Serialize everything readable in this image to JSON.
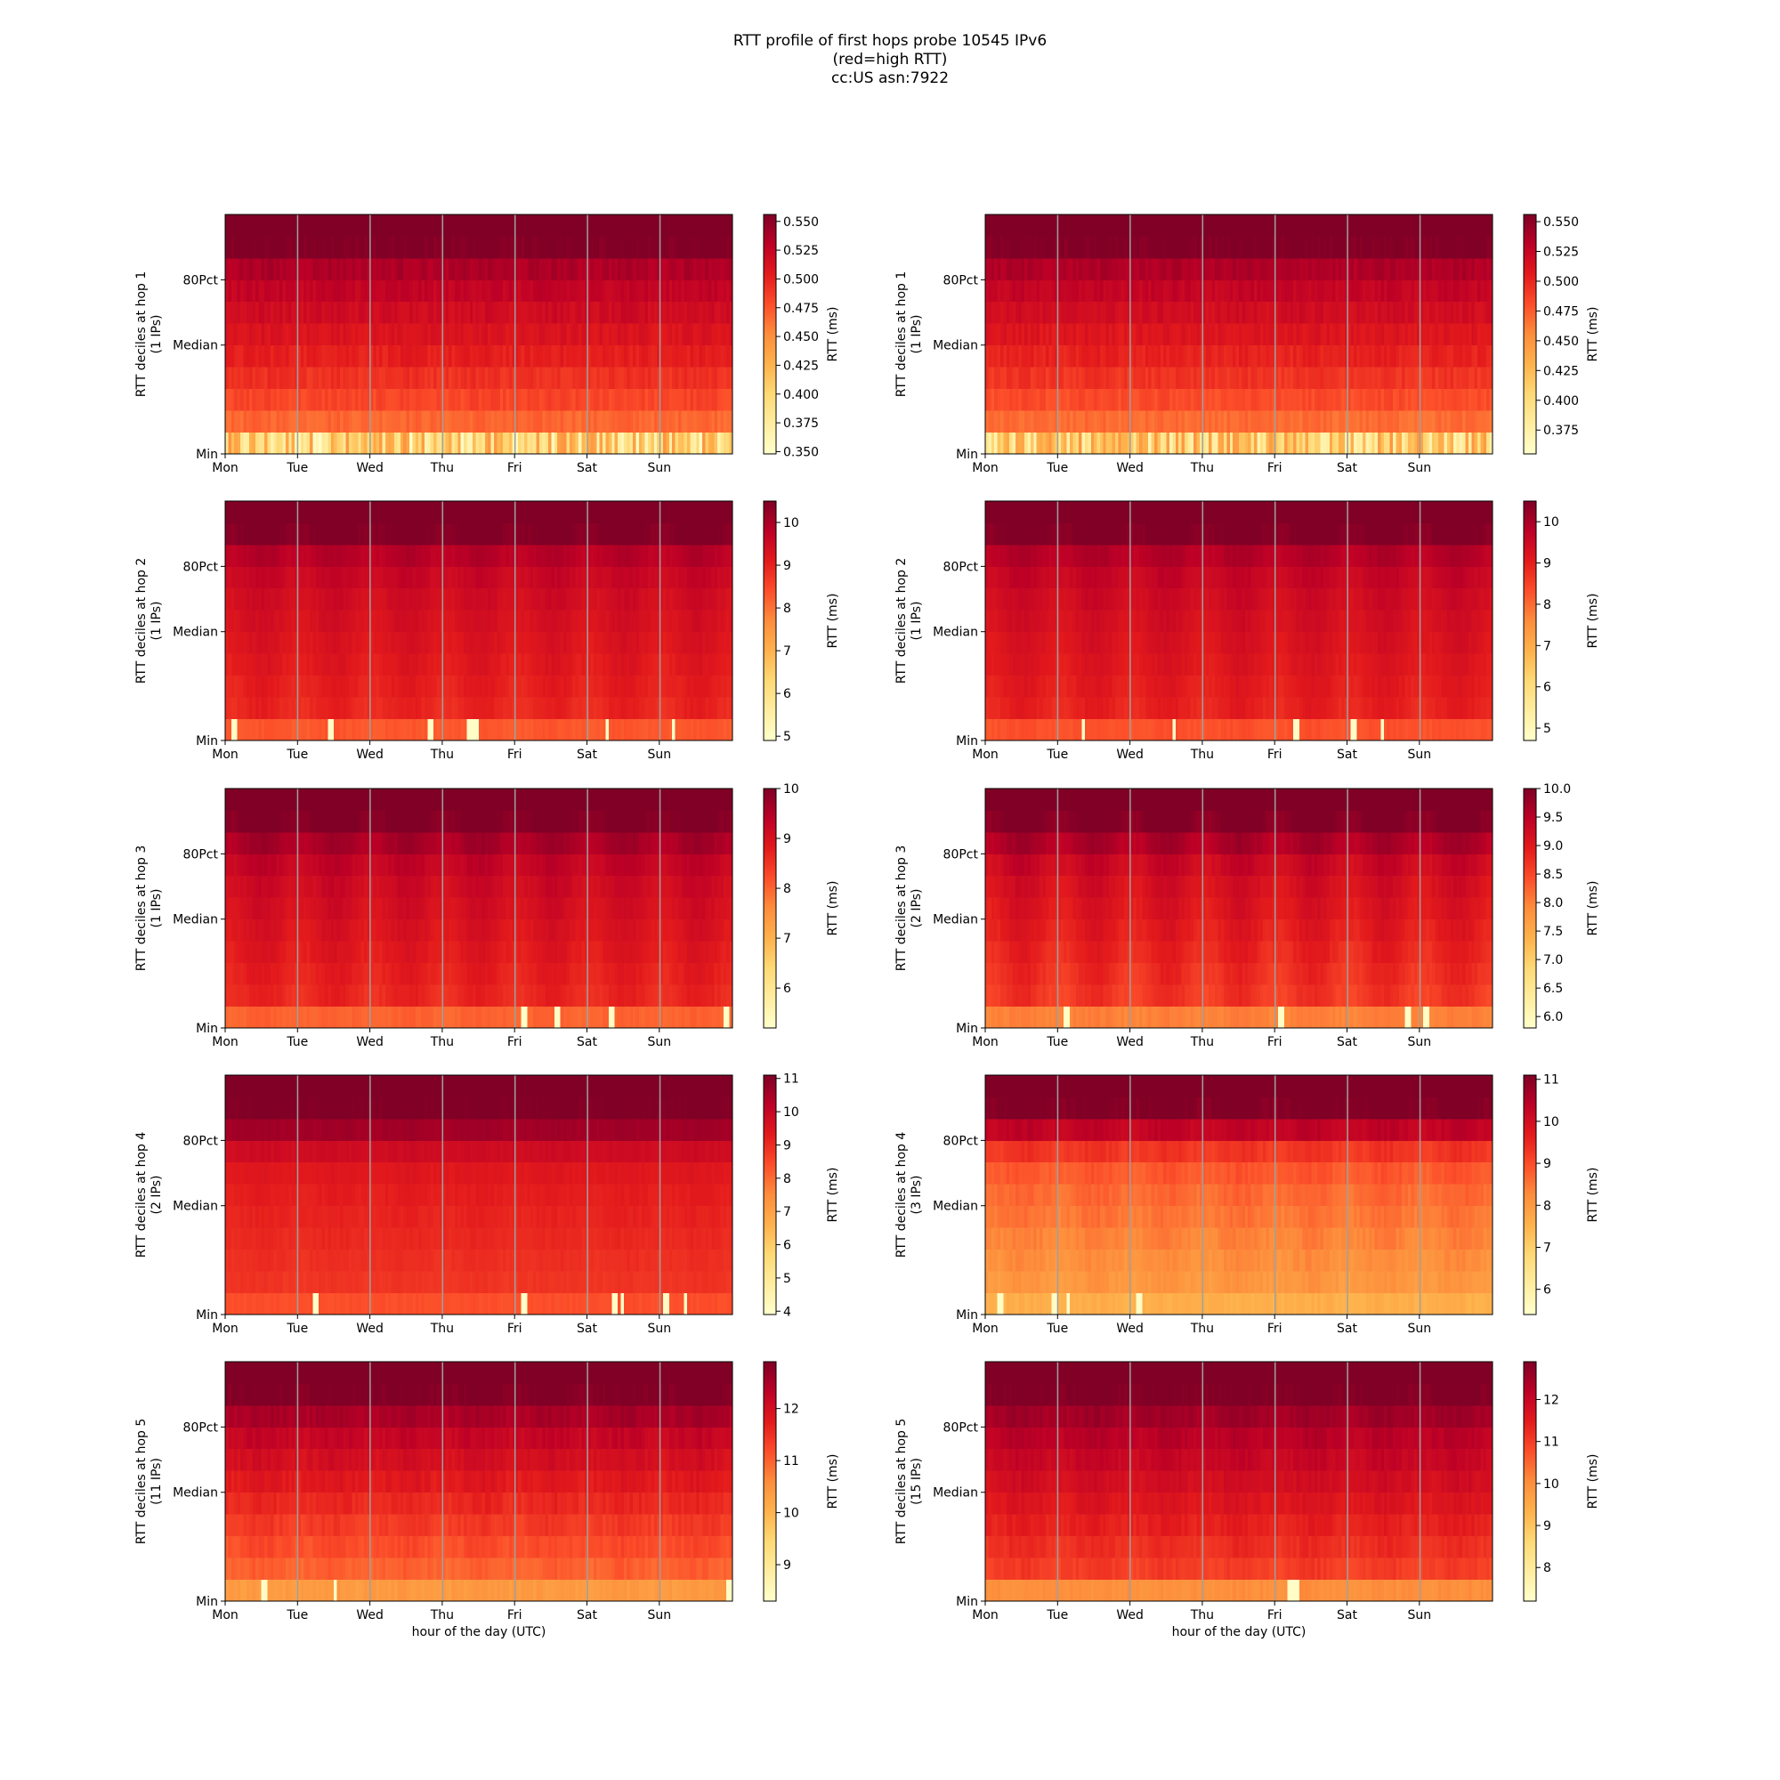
{
  "title_lines": [
    "RTT profile of first hops probe 10545 IPv6",
    "(red=high RTT)",
    "cc:US asn:7922"
  ],
  "colormap": [
    "#ffffcc",
    "#ffeda0",
    "#fed976",
    "#feb24c",
    "#fd8d3c",
    "#fc4e2a",
    "#e31a1c",
    "#bd0026",
    "#800026"
  ],
  "chart_data": [
    {
      "type": "heatmap",
      "column": "left",
      "hop": 1,
      "ylabel": "RTT deciles at hop 1\n(1 IPs)",
      "xlabel": "",
      "xticks": [
        "Mon",
        "Tue",
        "Wed",
        "Thu",
        "Fri",
        "Sat",
        "Sun"
      ],
      "yticks": [
        "Min",
        "Median",
        "80Pct"
      ],
      "colorbar_label": "RTT (ms)",
      "colorbar_ticks": [
        "0.350",
        "0.375",
        "0.400",
        "0.425",
        "0.450",
        "0.475",
        "0.500",
        "0.525",
        "0.550"
      ],
      "clim": [
        0.348,
        0.556
      ],
      "decile_values": [
        0.4,
        0.468,
        0.482,
        0.493,
        0.502,
        0.51,
        0.518,
        0.526,
        0.536,
        0.556
      ],
      "min_spikes": [],
      "daily_pattern": 0.1,
      "noise": 0.5
    },
    {
      "type": "heatmap",
      "column": "right",
      "hop": 1,
      "ylabel": "RTT deciles at hop 1\n(1 IPs)",
      "xlabel": "",
      "xticks": [
        "Mon",
        "Tue",
        "Wed",
        "Thu",
        "Fri",
        "Sat",
        "Sun"
      ],
      "yticks": [
        "Min",
        "Median",
        "80Pct"
      ],
      "colorbar_label": "RTT (ms)",
      "colorbar_ticks": [
        "0.375",
        "0.400",
        "0.425",
        "0.450",
        "0.475",
        "0.500",
        "0.525",
        "0.550"
      ],
      "clim": [
        0.355,
        0.556
      ],
      "decile_values": [
        0.41,
        0.468,
        0.482,
        0.493,
        0.502,
        0.51,
        0.518,
        0.526,
        0.536,
        0.556
      ],
      "min_spikes": [],
      "daily_pattern": 0.1,
      "noise": 0.5
    },
    {
      "type": "heatmap",
      "column": "left",
      "hop": 2,
      "ylabel": "RTT deciles at hop 2\n(1 IPs)",
      "xlabel": "",
      "xticks": [
        "Mon",
        "Tue",
        "Wed",
        "Thu",
        "Fri",
        "Sat",
        "Sun"
      ],
      "yticks": [
        "Min",
        "Median",
        "80Pct"
      ],
      "colorbar_label": "RTT (ms)",
      "colorbar_ticks": [
        "5",
        "6",
        "7",
        "8",
        "9",
        "10"
      ],
      "clim": [
        4.9,
        10.5
      ],
      "decile_values": [
        8.3,
        8.95,
        9.05,
        9.15,
        9.25,
        9.35,
        9.45,
        9.6,
        9.85,
        10.5
      ],
      "min_spikes": [
        0.015,
        0.205,
        0.208,
        0.4,
        0.48,
        0.49,
        0.75,
        0.88
      ],
      "daily_pattern": 0.7,
      "noise": 0.4
    },
    {
      "type": "heatmap",
      "column": "right",
      "hop": 2,
      "ylabel": "RTT deciles at hop 2\n(1 IPs)",
      "xlabel": "",
      "xticks": [
        "Mon",
        "Tue",
        "Wed",
        "Thu",
        "Fri",
        "Sat",
        "Sun"
      ],
      "yticks": [
        "Min",
        "Median",
        "80Pct"
      ],
      "colorbar_label": "RTT (ms)",
      "colorbar_ticks": [
        "5",
        "6",
        "7",
        "8",
        "9",
        "10"
      ],
      "clim": [
        4.7,
        10.5
      ],
      "decile_values": [
        8.3,
        8.95,
        9.05,
        9.15,
        9.25,
        9.35,
        9.45,
        9.6,
        9.85,
        10.5
      ],
      "min_spikes": [
        0.19,
        0.37,
        0.61,
        0.72,
        0.725,
        0.78
      ],
      "daily_pattern": 0.8,
      "noise": 0.4
    },
    {
      "type": "heatmap",
      "column": "left",
      "hop": 3,
      "ylabel": "RTT deciles at hop 3\n(1 IPs)",
      "xlabel": "",
      "xticks": [
        "Mon",
        "Tue",
        "Wed",
        "Thu",
        "Fri",
        "Sat",
        "Sun"
      ],
      "yticks": [
        "Min",
        "Median",
        "80Pct"
      ],
      "colorbar_label": "RTT (ms)",
      "colorbar_ticks": [
        "6",
        "7",
        "8",
        "9",
        "10"
      ],
      "clim": [
        5.2,
        10.0
      ],
      "decile_values": [
        8.0,
        8.65,
        8.75,
        8.85,
        8.95,
        9.05,
        9.15,
        9.3,
        9.6,
        10.0
      ],
      "min_spikes": [
        0.585,
        0.59,
        0.65,
        0.755,
        0.76,
        0.985
      ],
      "daily_pattern": 0.8,
      "noise": 0.35
    },
    {
      "type": "heatmap",
      "column": "right",
      "hop": 3,
      "ylabel": "RTT deciles at hop 3\n(2 IPs)",
      "xlabel": "",
      "xticks": [
        "Mon",
        "Tue",
        "Wed",
        "Thu",
        "Fri",
        "Sat",
        "Sun"
      ],
      "yticks": [
        "Min",
        "Median",
        "80Pct"
      ],
      "colorbar_label": "RTT (ms)",
      "colorbar_ticks": [
        "6.0",
        "6.5",
        "7.0",
        "7.5",
        "8.0",
        "8.5",
        "9.0",
        "9.5",
        "10.0"
      ],
      "clim": [
        5.8,
        10.0
      ],
      "decile_values": [
        8.0,
        8.65,
        8.75,
        8.85,
        8.95,
        9.05,
        9.15,
        9.3,
        9.6,
        10.0
      ],
      "min_spikes": [
        0.158,
        0.58,
        0.83,
        0.865
      ],
      "daily_pattern": 0.9,
      "noise": 0.35
    },
    {
      "type": "heatmap",
      "column": "left",
      "hop": 4,
      "ylabel": "RTT deciles at hop 4\n(2 IPs)",
      "xlabel": "",
      "xticks": [
        "Mon",
        "Tue",
        "Wed",
        "Thu",
        "Fri",
        "Sat",
        "Sun"
      ],
      "yticks": [
        "Min",
        "Median",
        "80Pct"
      ],
      "colorbar_label": "RTT (ms)",
      "colorbar_ticks": [
        "4",
        "5",
        "6",
        "7",
        "8",
        "9",
        "10",
        "11"
      ],
      "clim": [
        3.9,
        11.1
      ],
      "decile_values": [
        8.4,
        8.85,
        8.95,
        9.05,
        9.15,
        9.25,
        9.4,
        9.8,
        10.6,
        11.1
      ],
      "min_spikes": [
        0.175,
        0.585,
        0.765,
        0.78,
        0.865,
        0.87,
        0.905
      ],
      "daily_pattern": 0.2,
      "noise": 0.3
    },
    {
      "type": "heatmap",
      "column": "right",
      "hop": 4,
      "ylabel": "RTT deciles at hop 4\n(3 IPs)",
      "xlabel": "",
      "xticks": [
        "Mon",
        "Tue",
        "Wed",
        "Thu",
        "Fri",
        "Sat",
        "Sun"
      ],
      "yticks": [
        "Min",
        "Median",
        "80Pct"
      ],
      "colorbar_label": "RTT (ms)",
      "colorbar_ticks": [
        "6",
        "7",
        "8",
        "9",
        "10",
        "11"
      ],
      "clim": [
        5.4,
        11.1
      ],
      "decile_values": [
        7.6,
        8.05,
        8.2,
        8.35,
        8.5,
        8.65,
        8.85,
        9.3,
        10.3,
        11.1
      ],
      "min_spikes": [
        0.025,
        0.03,
        0.135,
        0.16,
        0.3
      ],
      "daily_pattern": 0.35,
      "noise": 0.4
    },
    {
      "type": "heatmap",
      "column": "left",
      "hop": 5,
      "ylabel": "RTT deciles at hop 5\n(11 IPs)",
      "xlabel": "hour of the day (UTC)",
      "xticks": [
        "Mon",
        "Tue",
        "Wed",
        "Thu",
        "Fri",
        "Sat",
        "Sun"
      ],
      "yticks": [
        "Min",
        "Median",
        "80Pct"
      ],
      "colorbar_label": "RTT (ms)",
      "colorbar_ticks": [
        "9",
        "10",
        "11",
        "12"
      ],
      "clim": [
        8.3,
        12.9
      ],
      "decile_values": [
        10.4,
        11.0,
        11.2,
        11.4,
        11.6,
        11.8,
        12.0,
        12.2,
        12.5,
        12.9
      ],
      "min_spikes": [
        0.075,
        0.215,
        0.99
      ],
      "daily_pattern": 0.3,
      "noise": 0.6
    },
    {
      "type": "heatmap",
      "column": "right",
      "hop": 5,
      "ylabel": "RTT deciles at hop 5\n(15 IPs)",
      "xlabel": "hour of the day (UTC)",
      "xticks": [
        "Mon",
        "Tue",
        "Wed",
        "Thu",
        "Fri",
        "Sat",
        "Sun"
      ],
      "yticks": [
        "Min",
        "Median",
        "80Pct"
      ],
      "colorbar_label": "RTT (ms)",
      "colorbar_ticks": [
        "8",
        "9",
        "10",
        "11",
        "12"
      ],
      "clim": [
        7.2,
        12.9
      ],
      "decile_values": [
        10.0,
        11.0,
        11.2,
        11.4,
        11.6,
        11.8,
        12.0,
        12.2,
        12.5,
        12.9
      ],
      "min_spikes": [
        0.6,
        0.612
      ],
      "daily_pattern": 0.35,
      "noise": 0.6
    }
  ]
}
